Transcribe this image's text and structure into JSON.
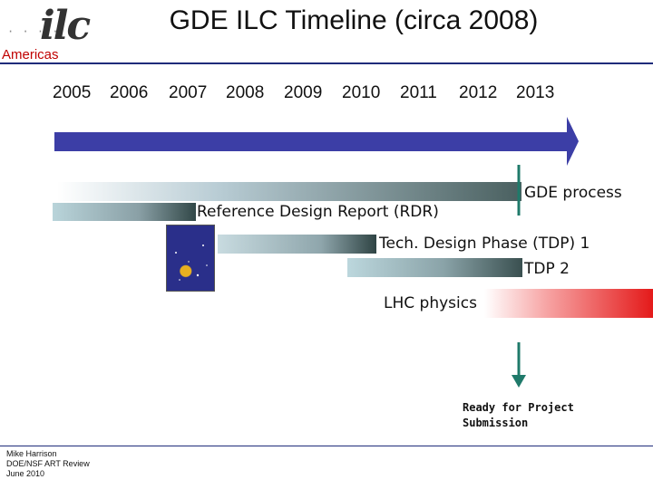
{
  "header": {
    "title": "GDE ILC Timeline (circa 2008)",
    "logo_text": "ilc",
    "logo_dots": "· · · ·",
    "region": "Americas"
  },
  "timeline": {
    "years": [
      "2005",
      "2006",
      "2007",
      "2008",
      "2009",
      "2010",
      "2011",
      "2012",
      "2013"
    ]
  },
  "phases": {
    "gde_process": "GDE process",
    "rdr": "Reference Design Report (RDR)",
    "tdp1": "Tech. Design Phase (TDP) 1",
    "tdp2": "TDP 2",
    "lhc": "LHC physics"
  },
  "milestone": {
    "line1": "Ready for Project",
    "line2": "Submission"
  },
  "footer": {
    "line1": "Mike Harrison",
    "line2": "DOE/NSF ART Review",
    "line3": "June 2010"
  },
  "colors": {
    "arrow": "#3c3ea6",
    "rule": "#1f2b7a",
    "milestone_arrow": "#1f7a6a",
    "region": "#c00000",
    "lhc": "#e41a1a"
  }
}
